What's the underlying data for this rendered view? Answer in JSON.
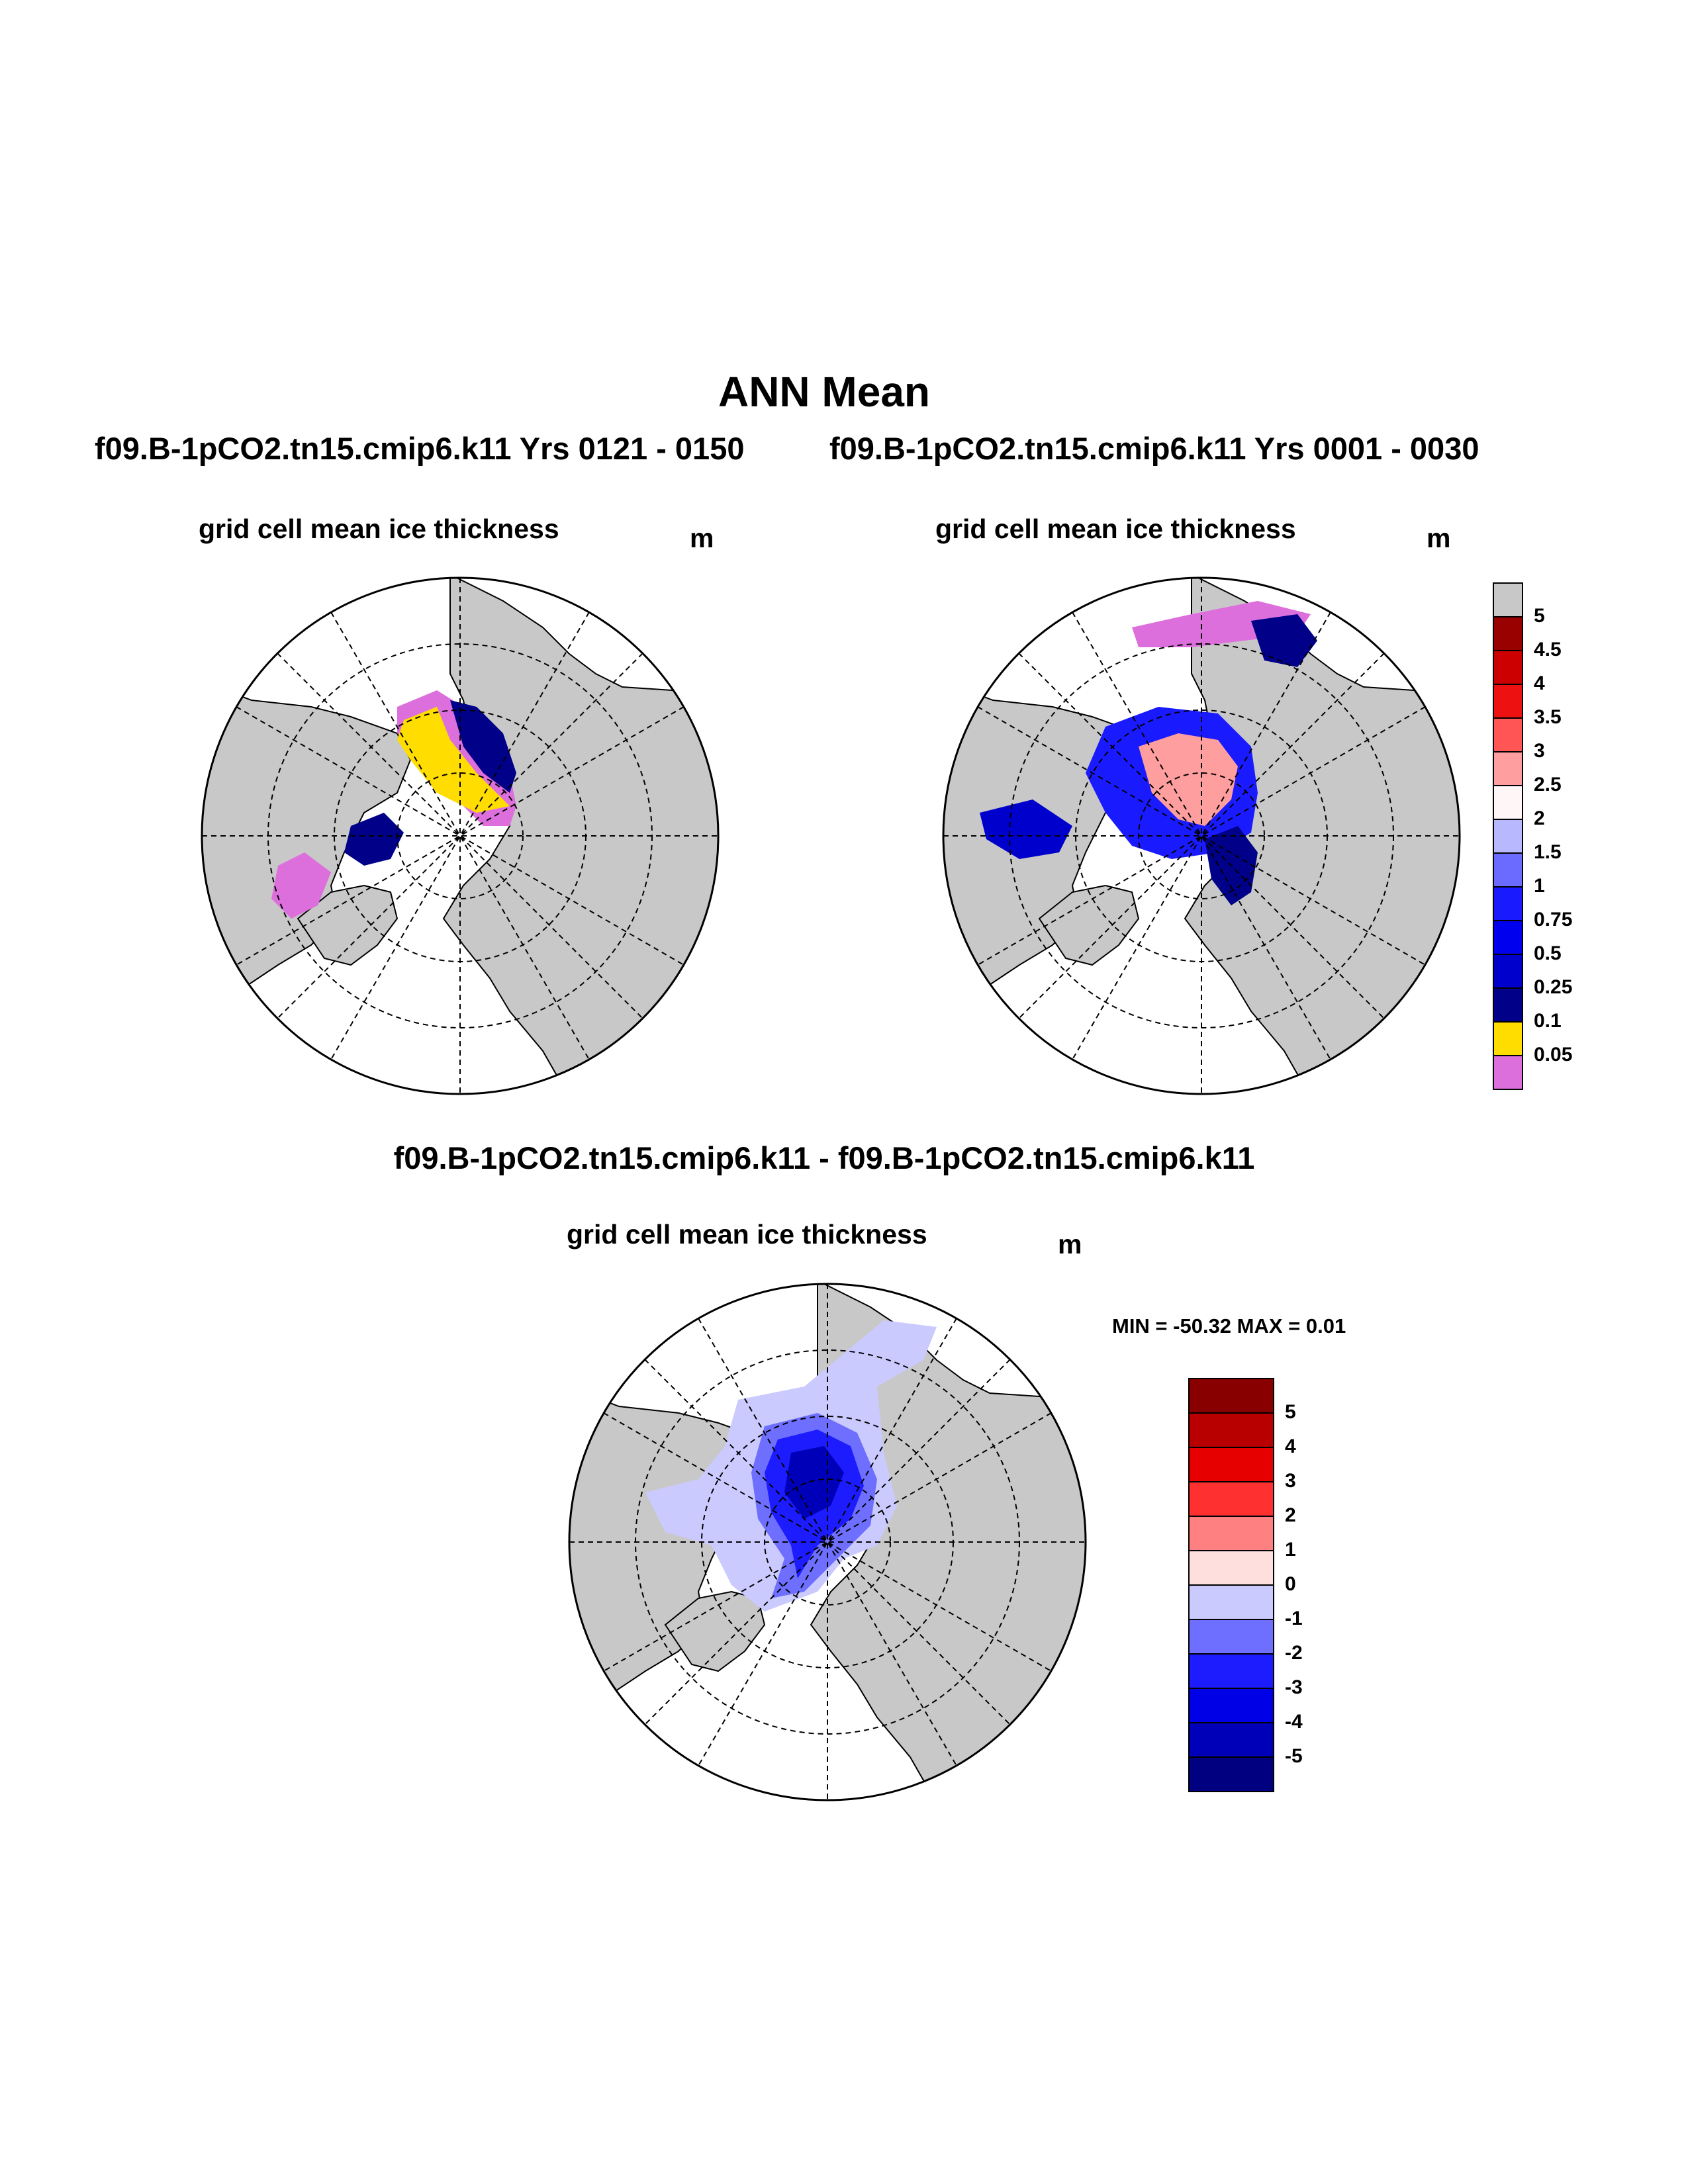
{
  "title": "ANN Mean",
  "subtitle_left": "f09.B-1pCO2.tn15.cmip6.k11  Yrs 0121 - 0150",
  "subtitle_right": "f09.B-1pCO2.tn15.cmip6.k11  Yrs 0001 - 0030",
  "diff_title": "f09.B-1pCO2.tn15.cmip6.k11 - f09.B-1pCO2.tn15.cmip6.k11",
  "panels": {
    "left": {
      "label": "grid cell mean ice thickness",
      "units": "m"
    },
    "right": {
      "label": "grid cell mean ice thickness",
      "units": "m"
    },
    "diff": {
      "label": "grid cell mean ice thickness",
      "units": "m",
      "minmax": "MIN = -50.32 MAX =   0.01"
    }
  },
  "colorbar_thickness": {
    "colors": [
      "#dd6fdd",
      "#ffdd00",
      "#000088",
      "#0000cc",
      "#0000ee",
      "#1a1aff",
      "#6b6bff",
      "#b8b8ff",
      "#fff7f7",
      "#ff9e9e",
      "#ff5555",
      "#ee1111",
      "#cc0000",
      "#990000",
      "#c8c8c8"
    ],
    "labels": [
      "0.05",
      "0.1",
      "0.25",
      "0.5",
      "0.75",
      "1",
      "1.5",
      "2",
      "2.5",
      "3",
      "3.5",
      "4",
      "4.5",
      "5"
    ]
  },
  "colorbar_diff": {
    "colors": [
      "#000080",
      "#0000b8",
      "#0000e6",
      "#1c1cff",
      "#6e6eff",
      "#cacaff",
      "#ffdede",
      "#ff8080",
      "#ff3030",
      "#e60000",
      "#b80000",
      "#880000"
    ],
    "labels": [
      "-5",
      "-4",
      "-3",
      "-2",
      "-1",
      "0",
      "1",
      "2",
      "3",
      "4",
      "5"
    ]
  }
}
